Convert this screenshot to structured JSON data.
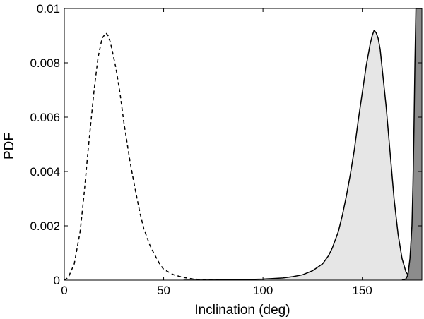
{
  "chart_data": {
    "type": "area",
    "title": "",
    "xlabel": "Inclination (deg)",
    "ylabel": "PDF",
    "xlim": [
      0,
      180
    ],
    "ylim": [
      0,
      0.01
    ],
    "xticks": [
      0,
      50,
      100,
      150
    ],
    "xtick_labels": [
      "0",
      "50",
      "100",
      "150"
    ],
    "yticks": [
      0,
      0.002,
      0.004,
      0.006,
      0.008,
      0.01
    ],
    "ytick_labels": [
      "0",
      "0.002",
      "0.004",
      "0.006",
      "0.008",
      "0.01"
    ],
    "grid": false,
    "legend": "none",
    "series": [
      {
        "style": "dashed-line",
        "color": "#000000",
        "x": [
          0,
          2,
          5,
          8,
          10,
          12,
          15,
          17,
          19,
          20,
          21,
          22,
          23,
          24,
          26,
          28,
          30,
          33,
          35,
          38,
          40,
          43,
          45,
          48,
          50,
          55,
          60,
          65,
          70,
          80,
          90,
          100
        ],
        "y": [
          0,
          0.0001,
          0.0006,
          0.0018,
          0.0032,
          0.0048,
          0.007,
          0.0082,
          0.0089,
          0.009,
          0.0091,
          0.009,
          0.0088,
          0.0085,
          0.0078,
          0.0069,
          0.0058,
          0.0044,
          0.0036,
          0.0025,
          0.0019,
          0.0013,
          0.001,
          0.0006,
          0.0004,
          0.0002,
          0.0001,
          4e-05,
          2e-05,
          5e-06,
          0,
          0
        ]
      },
      {
        "style": "filled-outlined",
        "color": "#000000",
        "fill": "#e6e6e6",
        "x": [
          60,
          80,
          100,
          110,
          115,
          120,
          125,
          130,
          133,
          135,
          138,
          140,
          142,
          144,
          146,
          148,
          150,
          152,
          154,
          155,
          156,
          157,
          158,
          159,
          160,
          162,
          164,
          166,
          168,
          170,
          172,
          174,
          176,
          178,
          180
        ],
        "y": [
          0,
          5e-06,
          4e-05,
          8e-05,
          0.00013,
          0.0002,
          0.00035,
          0.0006,
          0.0009,
          0.0012,
          0.0018,
          0.0024,
          0.0031,
          0.0039,
          0.0048,
          0.0059,
          0.0069,
          0.0079,
          0.0087,
          0.009,
          0.0092,
          0.0091,
          0.0089,
          0.0085,
          0.0078,
          0.0064,
          0.0047,
          0.003,
          0.0017,
          0.0008,
          0.0003,
          0.0001,
          4e-05,
          1e-05,
          0
        ]
      },
      {
        "style": "filled-dark",
        "color": "#000000",
        "fill": "#8c8c8c",
        "x": [
          170,
          172,
          173,
          174,
          175,
          175.5,
          176,
          176.5,
          177,
          177.5,
          178,
          178.5,
          179,
          179.5,
          180
        ],
        "y": [
          0,
          5e-05,
          0.0002,
          0.0008,
          0.002,
          0.0035,
          0.0055,
          0.008,
          0.01,
          0.01,
          0.01,
          0.01,
          0.01,
          0.01,
          0.01
        ]
      }
    ]
  }
}
